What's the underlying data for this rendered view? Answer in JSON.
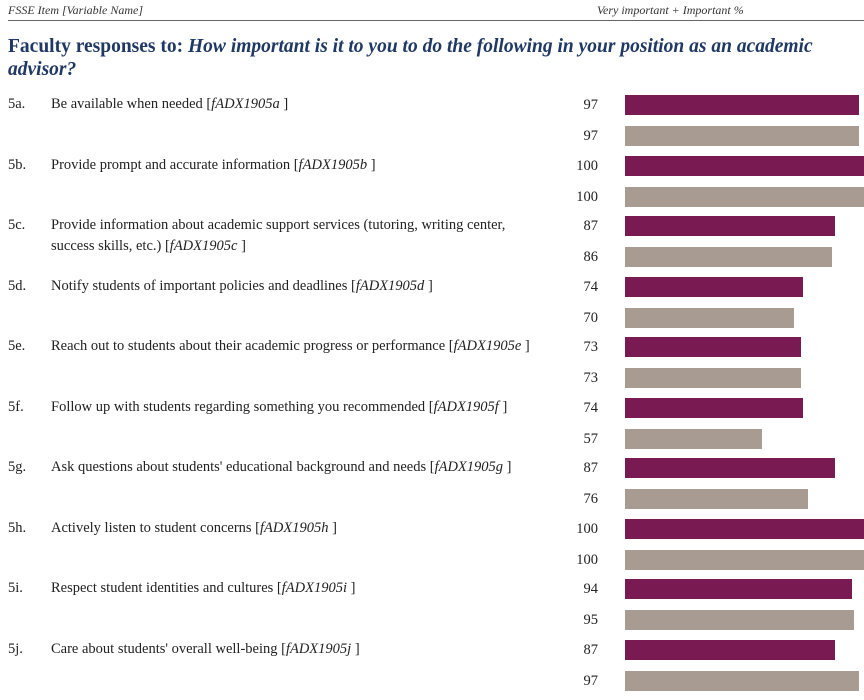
{
  "header": {
    "left": "FSSE Item [Variable Name]",
    "right": "Very important + Important %"
  },
  "title": {
    "prefix": "Faculty responses to:",
    "question": "How important is it to you to do the following in your position as an academic advisor?"
  },
  "colors": {
    "series1": "#7a1a52",
    "series2": "#a89b92"
  },
  "chart_data": {
    "type": "bar",
    "orientation": "horizontal",
    "xlim": [
      0,
      100
    ],
    "grid": false,
    "categories": [
      "5a",
      "5b",
      "5c",
      "5d",
      "5e",
      "5f",
      "5g",
      "5h",
      "5i",
      "5j"
    ],
    "series": [
      {
        "values": [
          97,
          100,
          87,
          74,
          73,
          74,
          87,
          100,
          94,
          87
        ]
      },
      {
        "values": [
          97,
          100,
          86,
          70,
          73,
          57,
          76,
          100,
          95,
          97
        ]
      }
    ]
  },
  "items": [
    {
      "num": "5a.",
      "text": "Be available when needed [",
      "var": "fADX1905a",
      "close": " ]"
    },
    {
      "num": "5b.",
      "text": "Provide prompt and accurate information [",
      "var": "fADX1905b",
      "close": " ]"
    },
    {
      "num": "5c.",
      "text": "Provide information about academic support services (tutoring, writing center, success skills, etc.) [",
      "var": "fADX1905c",
      "close": " ]"
    },
    {
      "num": "5d.",
      "text": "Notify students of important policies and deadlines [",
      "var": "fADX1905d",
      "close": " ]"
    },
    {
      "num": "5e.",
      "text": "Reach out to students about their academic progress or performance [",
      "var": "fADX1905e",
      "close": " ]"
    },
    {
      "num": "5f.",
      "text": "Follow up with students regarding something you recommended [",
      "var": "fADX1905f",
      "close": " ]"
    },
    {
      "num": "5g.",
      "text": "Ask questions about students' educational background and needs [",
      "var": "fADX1905g",
      "close": " ]"
    },
    {
      "num": "5h.",
      "text": "Actively listen to student concerns [",
      "var": "fADX1905h",
      "close": " ]"
    },
    {
      "num": "5i.",
      "text": "Respect student identities and cultures [",
      "var": "fADX1905i",
      "close": " ]"
    },
    {
      "num": "5j.",
      "text": "Care about students' overall well-being [",
      "var": "fADX1905j",
      "close": " ]"
    }
  ]
}
